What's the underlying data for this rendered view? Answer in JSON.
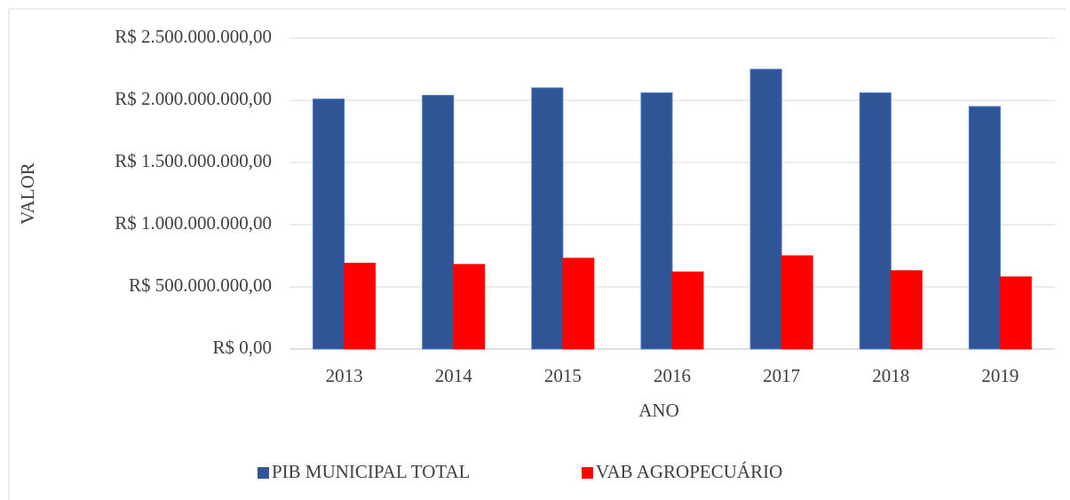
{
  "chart_data": {
    "type": "bar",
    "categories": [
      "2013",
      "2014",
      "2015",
      "2016",
      "2017",
      "2018",
      "2019"
    ],
    "series": [
      {
        "name": "PIB MUNICIPAL TOTAL",
        "color": "#2f5597",
        "values": [
          2010000000,
          2040000000,
          2100000000,
          2060000000,
          2250000000,
          2060000000,
          1950000000
        ]
      },
      {
        "name": "VAB AGROPECUÁRIO",
        "color": "#ff0000",
        "values": [
          690000000,
          680000000,
          730000000,
          620000000,
          750000000,
          630000000,
          580000000
        ]
      }
    ],
    "x_label": "ANO",
    "y_label": "VALOR",
    "ylim": [
      0,
      2500000000
    ],
    "yticks": [
      {
        "value": 0,
        "label": "R$ 0,00"
      },
      {
        "value": 500000000,
        "label": "R$ 500.000.000,00"
      },
      {
        "value": 1000000000,
        "label": "R$ 1.000.000.000,00"
      },
      {
        "value": 1500000000,
        "label": "R$ 1.500.000.000,00"
      },
      {
        "value": 2000000000,
        "label": "R$ 2.000.000.000,00"
      },
      {
        "value": 2500000000,
        "label": "R$ 2.500.000.000,00"
      }
    ],
    "grid": true,
    "legend": "bottom"
  }
}
